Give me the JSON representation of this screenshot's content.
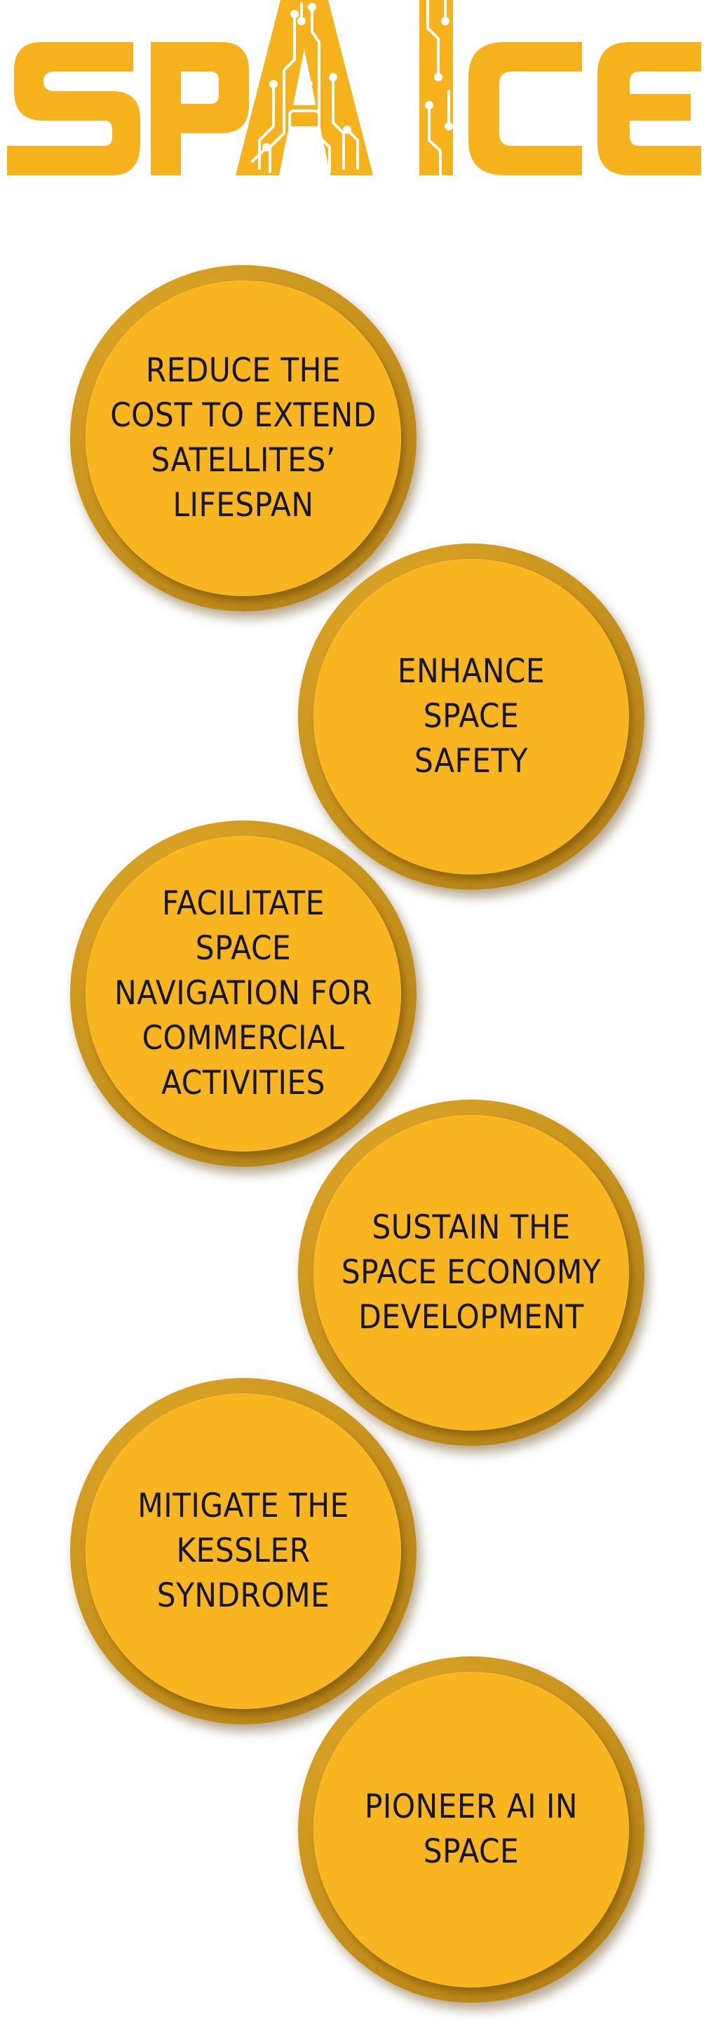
{
  "logo": {
    "text": "SPAICE",
    "accent_color": "#f5b21c",
    "icon": "circuit-board-letters-ai"
  },
  "goals": [
    {
      "label": "REDUCE THE\nCOST TO EXTEND\nSATELLITES’\nLIFESPAN"
    },
    {
      "label": "ENHANCE\nSPACE\nSAFETY"
    },
    {
      "label": "FACILITATE\nSPACE\nNAVIGATION FOR\nCOMMERCIAL\nACTIVITIES"
    },
    {
      "label": "SUSTAIN THE\nSPACE ECONOMY\nDEVELOPMENT"
    },
    {
      "label": "MITIGATE THE\nKESSLER\nSYNDROME"
    },
    {
      "label": "PIONEER AI IN\nSPACE"
    }
  ],
  "colors": {
    "circle_fill": "#f9b51f",
    "circle_ring": "#c8931c",
    "text": "#15162a"
  }
}
